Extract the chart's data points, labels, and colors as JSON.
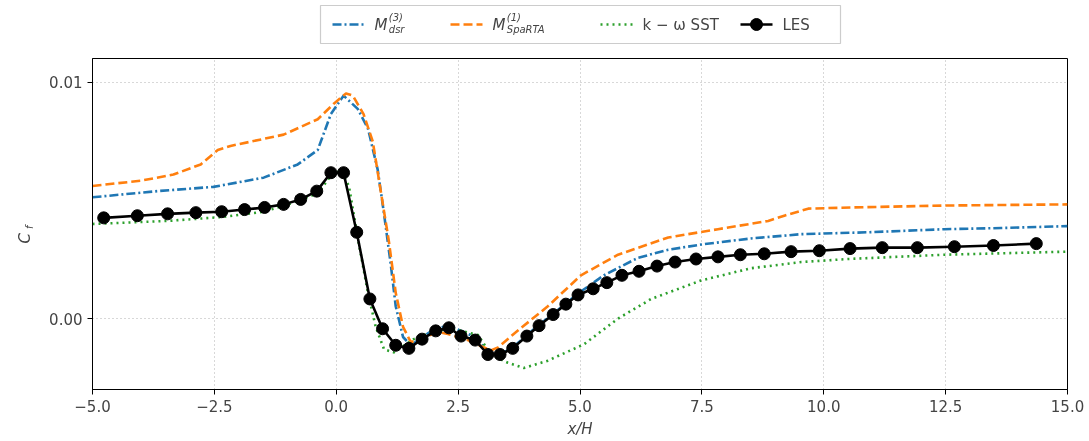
{
  "chart_data": {
    "type": "line",
    "xlabel": "x/H",
    "ylabel": "C$_{f}$",
    "xlim": [
      -5,
      15
    ],
    "ylim": [
      -0.003,
      0.011
    ],
    "xticks": [
      {
        "value": -5,
        "label": "−5.0"
      },
      {
        "value": -2.5,
        "label": "−2.5"
      },
      {
        "value": 0,
        "label": "0.0"
      },
      {
        "value": 2.5,
        "label": "2.5"
      },
      {
        "value": 5,
        "label": "5.0"
      },
      {
        "value": 7.5,
        "label": "7.5"
      },
      {
        "value": 10,
        "label": "10.0"
      },
      {
        "value": 12.5,
        "label": "12.5"
      },
      {
        "value": 15,
        "label": "15.0"
      }
    ],
    "yticks": [
      {
        "value": 0,
        "label": "0.00"
      },
      {
        "value": 0.01,
        "label": "0.01"
      }
    ],
    "grid": true,
    "legend": "top",
    "series": [
      {
        "name": "M$^{(3)}$$_{dsr}$",
        "color": "#1f77b4",
        "line_style": "dashdot",
        "marker": "none",
        "x": [
          -5,
          -3.67,
          -2.52,
          -1.49,
          -0.79,
          -0.38,
          -0.11,
          0.15,
          0.44,
          0.65,
          0.85,
          0.98,
          1.12,
          1.22,
          1.37,
          1.53,
          2.02,
          2.31,
          2.85,
          3.11,
          3.36,
          3.62,
          4.16,
          4.45,
          4.98,
          5.49,
          6.19,
          6.81,
          7.48,
          8.51,
          9.54,
          10.91,
          12.47,
          13.64,
          15
        ],
        "values": [
          0.00513,
          0.00539,
          0.00557,
          0.00596,
          0.00652,
          0.00713,
          0.00865,
          0.00943,
          0.00887,
          0.00804,
          0.0063,
          0.00443,
          0.00226,
          0.00052,
          -0.00078,
          -0.00113,
          -0.00043,
          -0.0003,
          -0.00078,
          -0.00143,
          -0.00152,
          -0.00122,
          -0.00026,
          0.0002,
          0.00109,
          0.00183,
          0.00257,
          0.00291,
          0.00313,
          0.00339,
          0.00357,
          0.00365,
          0.00378,
          0.00383,
          0.00391
        ]
      },
      {
        "name": "M$^{(1)}$$_{SpaRTA}$",
        "color": "#ff7f0e",
        "line_style": "dashed",
        "marker": "none",
        "x": [
          -5,
          -4.01,
          -3.34,
          -2.78,
          -2.43,
          -2.17,
          -1.08,
          -0.38,
          -0.05,
          0.2,
          0.34,
          0.56,
          0.75,
          0.91,
          1.08,
          1.22,
          1.37,
          1.53,
          2.08,
          2.29,
          2.7,
          3.17,
          3.32,
          3.64,
          4.34,
          5.02,
          5.78,
          6.81,
          7.83,
          8.86,
          9.19,
          9.68,
          10.56,
          12.47,
          15
        ],
        "values": [
          0.00561,
          0.00583,
          0.00609,
          0.00652,
          0.00713,
          0.0073,
          0.00778,
          0.00843,
          0.00909,
          0.00952,
          0.00943,
          0.00865,
          0.00748,
          0.00543,
          0.00326,
          0.00109,
          -0.00035,
          -0.001,
          -0.00057,
          -0.00065,
          -0.00091,
          -0.00135,
          -0.00122,
          -0.00065,
          0.00052,
          0.00183,
          0.0027,
          0.00343,
          0.00378,
          0.00413,
          0.00435,
          0.00465,
          0.0047,
          0.00478,
          0.00483
        ]
      },
      {
        "name": "k − ω SST",
        "color": "#2ca02c",
        "line_style": "dotted",
        "marker": "none",
        "x": [
          -5,
          -3.46,
          -2.31,
          -1.49,
          -0.93,
          -0.38,
          -0.11,
          0.09,
          0.26,
          0.44,
          0.65,
          0.81,
          0.98,
          1.18,
          1.59,
          2.08,
          2.5,
          2.91,
          3.17,
          3.52,
          3.85,
          4.34,
          5.08,
          5.78,
          6.46,
          7.48,
          8.51,
          9.54,
          10.5,
          12.47,
          15
        ],
        "values": [
          0.004,
          0.00413,
          0.0043,
          0.00452,
          0.00487,
          0.0053,
          0.00604,
          0.00626,
          0.00561,
          0.00343,
          0.00109,
          -0.00035,
          -0.0013,
          -0.00143,
          -0.00087,
          -0.00048,
          -0.00048,
          -0.0007,
          -0.00152,
          -0.00187,
          -0.00209,
          -0.00178,
          -0.00109,
          0,
          0.00083,
          0.00161,
          0.00213,
          0.00239,
          0.00252,
          0.0027,
          0.00283
        ]
      },
      {
        "name": "LES",
        "color": "#000000",
        "line_style": "solid",
        "marker": "circle",
        "x": [
          -4.77,
          -4.08,
          -3.46,
          -2.88,
          -2.35,
          -1.88,
          -1.47,
          -1.08,
          -0.73,
          -0.4,
          -0.11,
          0.15,
          0.42,
          0.69,
          0.95,
          1.22,
          1.49,
          1.76,
          2.04,
          2.31,
          2.56,
          2.85,
          3.11,
          3.36,
          3.62,
          3.91,
          4.16,
          4.45,
          4.71,
          4.96,
          5.27,
          5.55,
          5.86,
          6.21,
          6.58,
          6.95,
          7.38,
          7.83,
          8.29,
          8.78,
          9.33,
          9.91,
          10.54,
          11.2,
          11.92,
          12.68,
          13.48,
          14.36
        ],
        "values": [
          0.00426,
          0.00435,
          0.00443,
          0.00448,
          0.00452,
          0.00461,
          0.0047,
          0.00483,
          0.00504,
          0.00539,
          0.00617,
          0.00617,
          0.00365,
          0.00083,
          -0.00043,
          -0.00113,
          -0.00126,
          -0.00087,
          -0.00052,
          -0.00039,
          -0.00074,
          -0.00091,
          -0.00152,
          -0.00152,
          -0.00126,
          -0.00074,
          -0.0003,
          0.00017,
          0.00061,
          0.001,
          0.00126,
          0.00152,
          0.00183,
          0.002,
          0.00222,
          0.00239,
          0.00252,
          0.00261,
          0.0027,
          0.00274,
          0.00283,
          0.00287,
          0.00296,
          0.003,
          0.003,
          0.00304,
          0.00309,
          0.00317
        ]
      }
    ]
  }
}
